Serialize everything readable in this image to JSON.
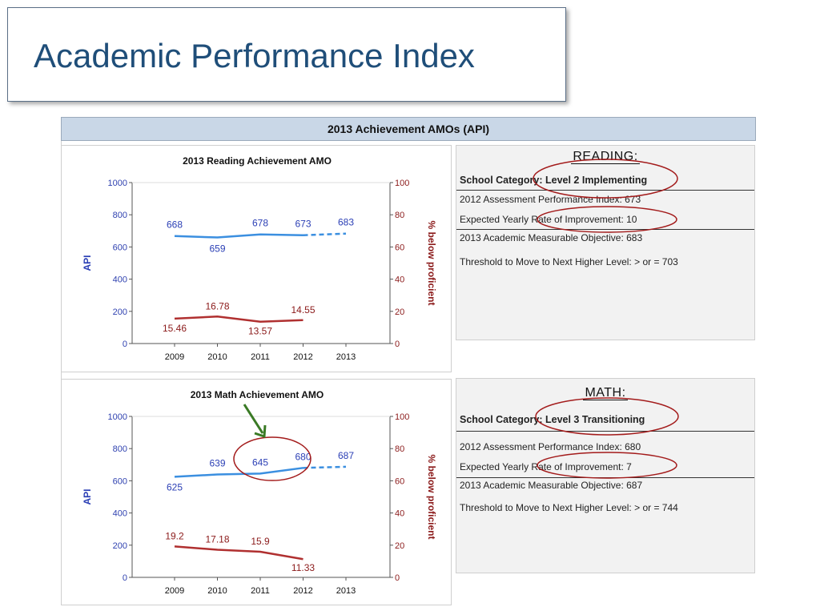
{
  "slide": {
    "title": "Academic Performance Index"
  },
  "section": {
    "title": "2013 Achievement AMOs (API)"
  },
  "reading": {
    "header": "READING:",
    "category_label": "School Category:",
    "category_value": "Level 2 Implementing",
    "lines": [
      "2012 Assessment Performance Index: 673",
      "Expected Yearly Rate of Improvement: 10",
      "2013 Academic Measurable Objective: 683",
      "Threshold to Move to Next Higher Level: > or = 703"
    ]
  },
  "math": {
    "header": "MATH:",
    "category_label": "School Category:",
    "category_value": "Level 3 Transitioning",
    "lines": [
      "2012 Assessment Performance Index: 680",
      "Expected Yearly Rate of Improvement: 7",
      "2013 Academic Measurable Objective: 687",
      "Threshold to Move to Next Higher Level: > or = 744"
    ]
  },
  "annotation_colors": {
    "circle": "#a31b1b",
    "arrow": "#3a7a25"
  },
  "chart_data": [
    {
      "type": "line",
      "title": "2013 Reading Achievement AMO",
      "categories": [
        "2009",
        "2010",
        "2011",
        "2012",
        "2013"
      ],
      "ylabel": "API",
      "y2label": "% below proficient",
      "ylim": [
        0,
        1000
      ],
      "y2lim": [
        0,
        100
      ],
      "yticks": [
        0,
        200,
        400,
        600,
        800,
        1000
      ],
      "y2ticks": [
        0,
        20,
        40,
        60,
        80,
        100
      ],
      "series": [
        {
          "axis": "left",
          "color": "#3b8fe0",
          "label_color": "#2b3fb5",
          "values": [
            668,
            659,
            678,
            673,
            null
          ],
          "labels": [
            "668",
            "659",
            "678",
            "673",
            ""
          ]
        },
        {
          "axis": "left",
          "color": "#3b8fe0",
          "dashed": true,
          "values": [
            null,
            null,
            null,
            673,
            683
          ],
          "labels": [
            "",
            "",
            "",
            "",
            "683"
          ]
        },
        {
          "axis": "right",
          "color": "#b03030",
          "label_color": "#8b1a1a",
          "values": [
            15.46,
            16.78,
            13.57,
            14.55,
            null
          ],
          "labels": [
            "15.46",
            "16.78",
            "13.57",
            "14.55",
            ""
          ]
        }
      ]
    },
    {
      "type": "line",
      "title": "2013 Math Achievement AMO",
      "categories": [
        "2009",
        "2010",
        "2011",
        "2012",
        "2013"
      ],
      "ylabel": "API",
      "y2label": "% below proficient",
      "ylim": [
        0,
        1000
      ],
      "y2lim": [
        0,
        100
      ],
      "yticks": [
        0,
        200,
        400,
        600,
        800,
        1000
      ],
      "y2ticks": [
        0,
        20,
        40,
        60,
        80,
        100
      ],
      "series": [
        {
          "axis": "left",
          "color": "#3b8fe0",
          "label_color": "#2b3fb5",
          "values": [
            625,
            639,
            645,
            680,
            null
          ],
          "labels": [
            "625",
            "639",
            "645",
            "680",
            ""
          ]
        },
        {
          "axis": "left",
          "color": "#3b8fe0",
          "dashed": true,
          "values": [
            null,
            null,
            null,
            680,
            687
          ],
          "labels": [
            "",
            "",
            "",
            "",
            "687"
          ]
        },
        {
          "axis": "right",
          "color": "#b03030",
          "label_color": "#8b1a1a",
          "values": [
            19.2,
            17.18,
            15.9,
            11.33,
            null
          ],
          "labels": [
            "19.2",
            "17.18",
            "15.9",
            "11.33",
            ""
          ]
        }
      ]
    }
  ]
}
